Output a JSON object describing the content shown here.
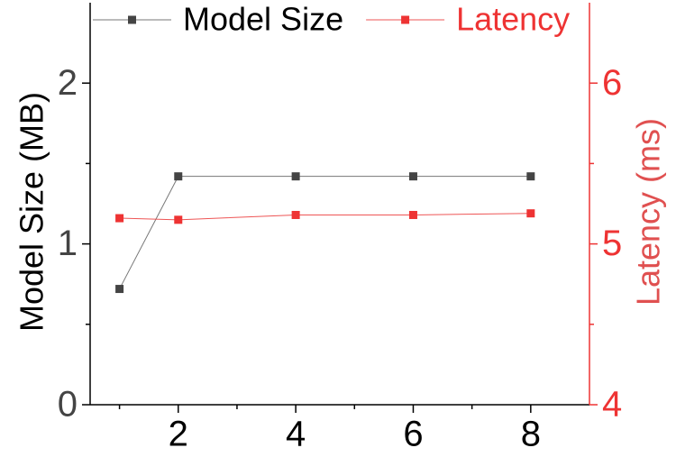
{
  "chart_data": {
    "type": "line",
    "x": [
      1,
      2,
      4,
      6,
      8
    ],
    "series": [
      {
        "name": "Model Size",
        "color": "#444444",
        "line_color": "#777777",
        "values": [
          0.72,
          1.42,
          1.42,
          1.42,
          1.42
        ]
      },
      {
        "name": "Latency",
        "color": "#ee3333",
        "line_color": "#ee5555",
        "values": [
          5.16,
          5.15,
          5.18,
          5.18,
          5.19
        ],
        "axis": "y2"
      }
    ],
    "ylabel": "Model Size (MB)",
    "y2label": "Latency (ms)",
    "xlim": [
      0.5,
      9
    ],
    "xticks": [
      2,
      4,
      6,
      8
    ],
    "xminorticks": [
      1,
      3,
      5,
      7
    ],
    "ylim": [
      0,
      2.5
    ],
    "yticks": [
      0,
      1,
      2
    ],
    "yminorticks": [
      0.5,
      1.5
    ],
    "y2lim": [
      4,
      6.5
    ],
    "y2ticks": [
      4,
      5,
      6
    ],
    "y2minorticks": [
      4.5,
      5.5
    ],
    "legend": "top"
  }
}
